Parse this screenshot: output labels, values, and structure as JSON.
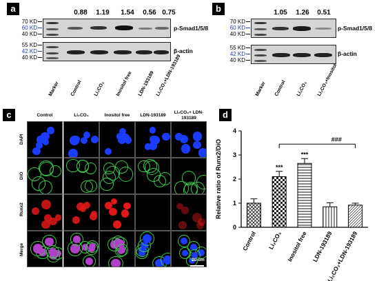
{
  "panel_a": {
    "label": "a",
    "mw_top": [
      "70 KD",
      "60 KD",
      "40 KD"
    ],
    "mw_bottom": [
      "55 KD",
      "42 KD",
      "40 KD"
    ],
    "ratios": [
      "0.88",
      "1.19",
      "1.54",
      "0.56",
      "0.75"
    ],
    "target_label": "p-Smad1/5/8",
    "control_label": "β-actin",
    "lanes": [
      "Marker",
      "Control",
      "Li₂CO₃",
      "Inositol free",
      "LDN-193189",
      "Li₂CO₃+LDN-193189"
    ]
  },
  "panel_b": {
    "label": "b",
    "mw_top": [
      "70 KD",
      "60 KD",
      "40 KD"
    ],
    "mw_bottom": [
      "55 KD",
      "42 KD",
      "40 KD"
    ],
    "ratios": [
      "1.05",
      "1.26",
      "0.51"
    ],
    "target_label": "p-Smad1/5/8",
    "control_label": "β-actin",
    "lanes": [
      "Marker",
      "Control",
      "Li₂CO₃",
      "Li₂CO₃+Inositol"
    ]
  },
  "panel_c": {
    "label": "c",
    "columns": [
      "Control",
      "Li₂CO₃",
      "Inositol free",
      "LDN-193189",
      "Li₂CO₃+ LDN-193189"
    ],
    "rows": [
      "DAPI",
      "DiO",
      "Runx2",
      "Merge"
    ],
    "scale_bar": "20 um"
  },
  "panel_d": {
    "label": "d",
    "significance": "###"
  },
  "chart_data": {
    "type": "bar",
    "categories": [
      "Control",
      "Li₂CO₃",
      "Inositol free",
      "LDN-193189",
      "Li₂CO₃+LDN-193189"
    ],
    "values": [
      1.0,
      2.1,
      2.65,
      0.85,
      0.92
    ],
    "errors": [
      0.18,
      0.22,
      0.2,
      0.17,
      0.08
    ],
    "annotations": [
      "",
      "***",
      "***",
      "",
      ""
    ],
    "bracket_label": "###",
    "ylabel": "Relative ratio of Runx2/DiO",
    "xlabel": "",
    "ylim": [
      0,
      4
    ],
    "yticks": [
      0,
      1,
      2,
      3,
      4
    ],
    "patterns": [
      "crosshatch",
      "checker",
      "hstripes",
      "vstripes",
      "diag"
    ]
  },
  "colors": {
    "label_bg": "#000000",
    "mw_blue": "#1f3cc0",
    "dapi": "#1a3cff",
    "dio": "#36c94a",
    "runx2": "#e01818"
  }
}
